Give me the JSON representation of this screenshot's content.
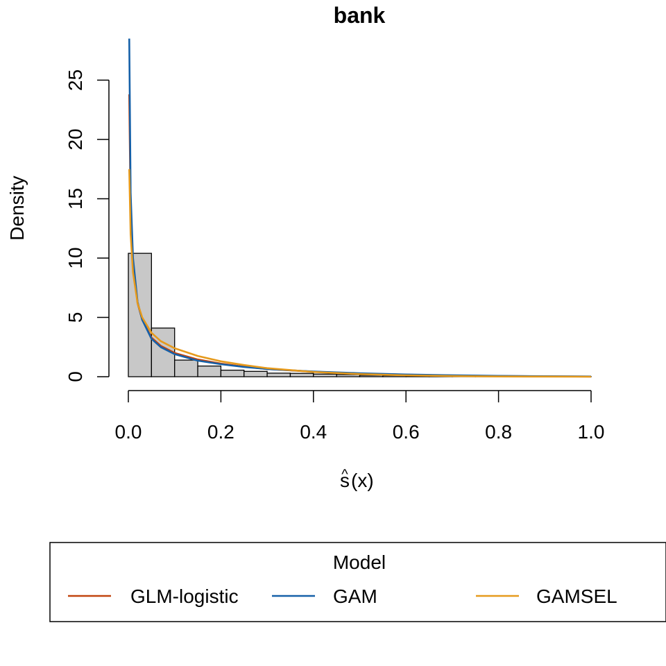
{
  "chart_data": {
    "type": "histogram-with-density-lines",
    "title": "bank",
    "xlabel": "ŝ(x)",
    "xlabel_base": "s",
    "xlabel_hat": "^",
    "xlabel_rest": "(x)",
    "ylabel": "Density",
    "xlim": [
      0,
      1
    ],
    "ylim": [
      0,
      27
    ],
    "x_ticks": [
      0,
      0.2,
      0.4,
      0.6,
      0.8,
      1.0
    ],
    "x_tick_labels": [
      "0.0",
      "0.2",
      "0.4",
      "0.6",
      "0.8",
      "1.0"
    ],
    "y_ticks": [
      0,
      5,
      10,
      15,
      20,
      25
    ],
    "y_tick_labels": [
      "0",
      "5",
      "10",
      "15",
      "20",
      "25"
    ],
    "grid": false,
    "histogram": {
      "bin_width": 0.05,
      "fill": "#c8c8c8",
      "edge": "#000000",
      "bins": [
        {
          "x0": 0.0,
          "x1": 0.05,
          "density": 10.4
        },
        {
          "x0": 0.05,
          "x1": 0.1,
          "density": 4.1
        },
        {
          "x0": 0.1,
          "x1": 0.15,
          "density": 1.4
        },
        {
          "x0": 0.15,
          "x1": 0.2,
          "density": 0.9
        },
        {
          "x0": 0.2,
          "x1": 0.25,
          "density": 0.55
        },
        {
          "x0": 0.25,
          "x1": 0.3,
          "density": 0.45
        },
        {
          "x0": 0.3,
          "x1": 0.35,
          "density": 0.3
        },
        {
          "x0": 0.35,
          "x1": 0.4,
          "density": 0.28
        },
        {
          "x0": 0.4,
          "x1": 0.45,
          "density": 0.22
        },
        {
          "x0": 0.45,
          "x1": 0.5,
          "density": 0.18
        },
        {
          "x0": 0.5,
          "x1": 0.55,
          "density": 0.12
        },
        {
          "x0": 0.55,
          "x1": 0.6,
          "density": 0.1
        },
        {
          "x0": 0.6,
          "x1": 0.65,
          "density": 0.06
        },
        {
          "x0": 0.65,
          "x1": 0.7,
          "density": 0.05
        },
        {
          "x0": 0.7,
          "x1": 0.75,
          "density": 0.03
        },
        {
          "x0": 0.75,
          "x1": 0.8,
          "density": 0.03
        },
        {
          "x0": 0.8,
          "x1": 0.85,
          "density": 0.02
        },
        {
          "x0": 0.85,
          "x1": 0.9,
          "density": 0.02
        },
        {
          "x0": 0.9,
          "x1": 0.95,
          "density": 0.01
        },
        {
          "x0": 0.95,
          "x1": 1.0,
          "density": 0.01
        }
      ]
    },
    "series": [
      {
        "name": "GLM-logistic",
        "color": "#c1440e",
        "x": [
          0.002,
          0.005,
          0.01,
          0.02,
          0.03,
          0.05,
          0.07,
          0.1,
          0.15,
          0.2,
          0.25,
          0.3,
          0.4,
          0.5,
          0.6,
          0.7,
          0.8,
          0.9,
          1.0
        ],
        "y": [
          23.8,
          14.0,
          9.5,
          6.2,
          4.8,
          3.3,
          2.6,
          2.0,
          1.45,
          1.1,
          0.85,
          0.65,
          0.42,
          0.27,
          0.17,
          0.1,
          0.06,
          0.03,
          0.01
        ]
      },
      {
        "name": "GAM",
        "color": "#1560a8",
        "x": [
          0.002,
          0.005,
          0.01,
          0.02,
          0.03,
          0.05,
          0.07,
          0.1,
          0.15,
          0.2,
          0.25,
          0.3,
          0.4,
          0.5,
          0.6,
          0.7,
          0.8,
          0.9,
          1.0
        ],
        "y": [
          28.5,
          15.5,
          10.0,
          6.3,
          4.8,
          3.2,
          2.5,
          1.9,
          1.35,
          1.05,
          0.82,
          0.65,
          0.44,
          0.29,
          0.19,
          0.12,
          0.07,
          0.04,
          0.02
        ]
      },
      {
        "name": "GAMSEL",
        "color": "#e69a1c",
        "x": [
          0.002,
          0.005,
          0.01,
          0.02,
          0.03,
          0.05,
          0.07,
          0.1,
          0.15,
          0.2,
          0.25,
          0.3,
          0.4,
          0.5,
          0.6,
          0.7,
          0.8,
          0.9,
          1.0
        ],
        "y": [
          17.5,
          12.0,
          8.8,
          6.2,
          5.0,
          3.7,
          3.0,
          2.4,
          1.75,
          1.3,
          0.98,
          0.72,
          0.4,
          0.22,
          0.11,
          0.05,
          0.02,
          0.01,
          0.0
        ]
      }
    ],
    "legend": {
      "title": "Model",
      "placement": "bottom",
      "entries": [
        "GLM-logistic",
        "GAM",
        "GAMSEL"
      ]
    }
  }
}
